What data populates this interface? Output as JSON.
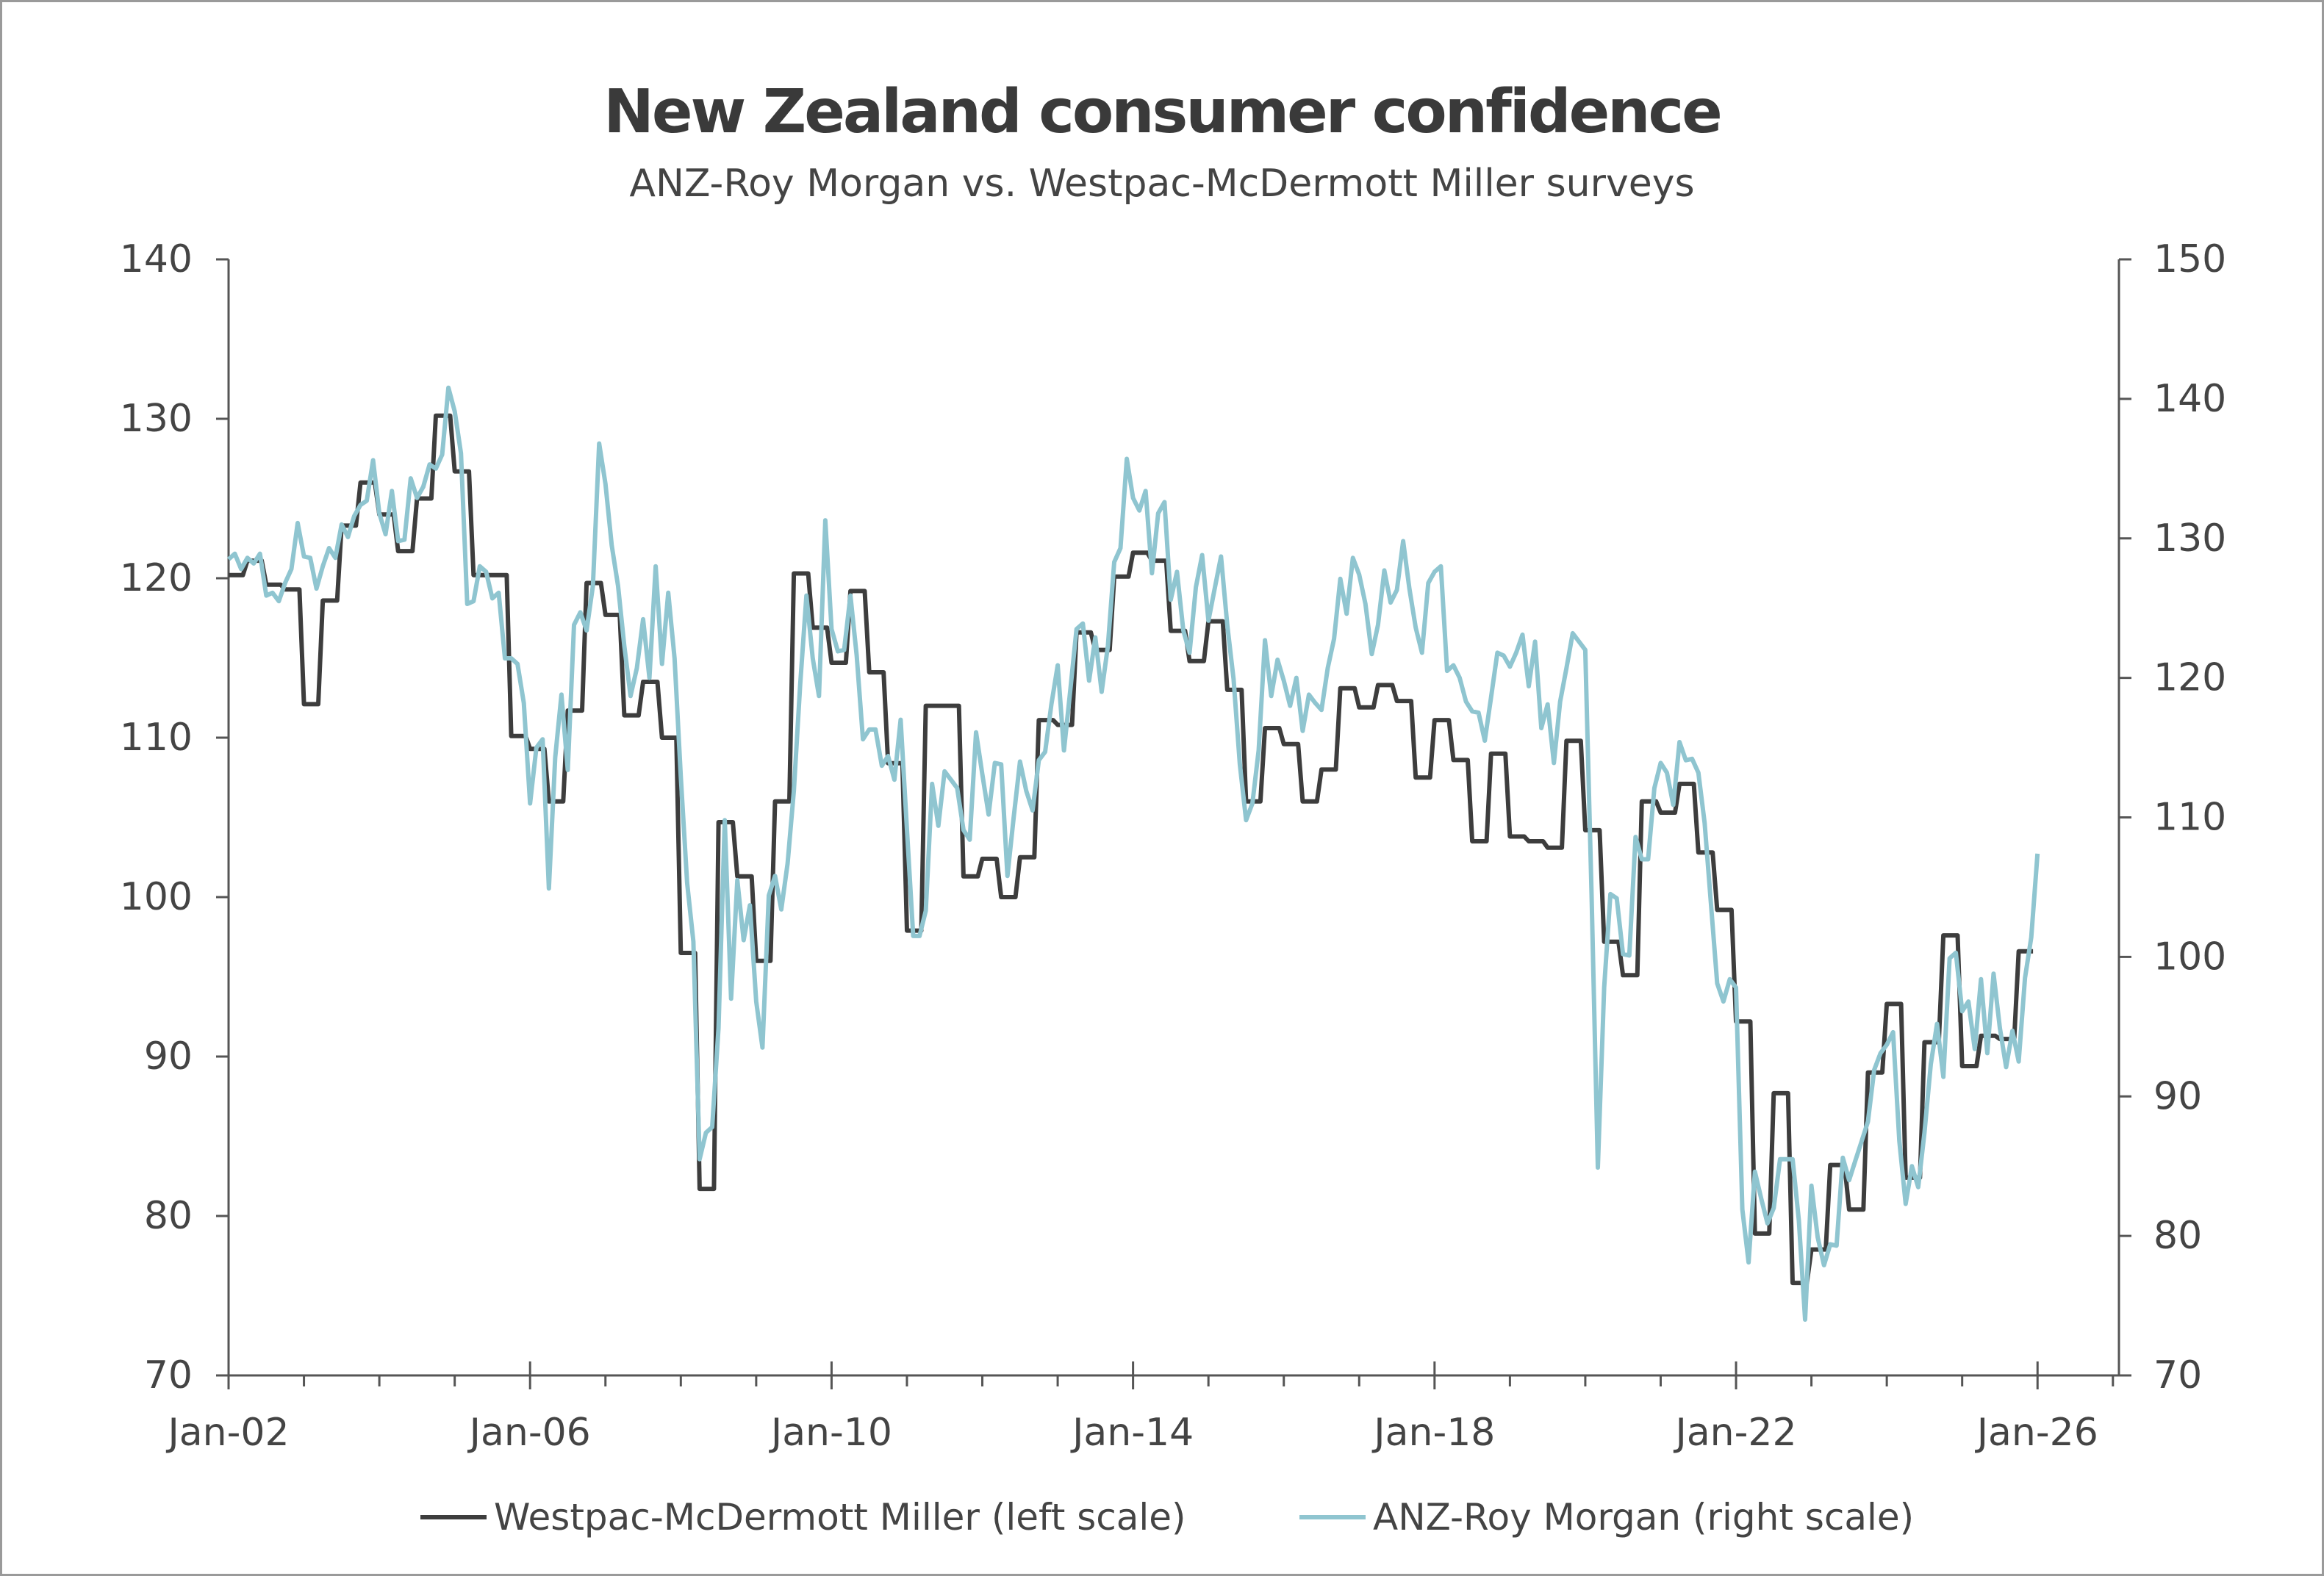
{
  "chart_data": {
    "type": "line",
    "title": "New Zealand consumer confidence",
    "subtitle": "ANZ-Roy Morgan vs. Westpac-McDermott Miller surveys",
    "x_axis": {
      "type": "date",
      "range": [
        "2002-01",
        "2027-01"
      ],
      "tick_labels": [
        "Jan-02",
        "Jan-06",
        "Jan-10",
        "Jan-14",
        "Jan-18",
        "Jan-22",
        "Jan-26"
      ],
      "minor_ticks": "yearly"
    },
    "y_left": {
      "range": [
        70,
        140
      ],
      "ticks": [
        70,
        80,
        90,
        100,
        110,
        120,
        130,
        140
      ]
    },
    "y_right": {
      "range": [
        70,
        150
      ],
      "ticks": [
        70,
        80,
        90,
        100,
        110,
        120,
        130,
        140,
        150
      ]
    },
    "grid": false,
    "legend_position": "bottom",
    "series": [
      {
        "name": "Westpac-McDermott Miller (left scale)",
        "axis": "left",
        "color": "#3d3d3d",
        "frequency": "quarterly",
        "style": "step",
        "quarterly_by_year": {
          "2002": [
            120.2,
            121.1,
            119.6,
            119.3
          ],
          "2003": [
            112.1,
            118.6,
            123.3,
            126.0
          ],
          "2004": [
            124.0,
            121.7,
            125.0,
            130.2
          ],
          "2005": [
            126.7,
            120.2,
            120.2,
            110.1
          ],
          "2006": [
            109.3,
            106.0,
            111.7,
            119.7
          ],
          "2007": [
            117.7,
            111.4,
            113.5,
            110.0
          ],
          "2008": [
            96.5,
            81.7,
            104.7,
            101.3
          ],
          "2009": [
            96.0,
            106.0,
            120.3,
            116.9
          ],
          "2010": [
            114.7,
            119.2,
            114.1,
            108.4
          ],
          "2011": [
            97.9,
            112.0,
            112.0,
            101.3
          ],
          "2012": [
            102.4,
            100.0,
            102.5,
            111.1
          ],
          "2013": [
            110.8,
            116.6,
            115.5,
            120.1
          ],
          "2014": [
            121.6,
            121.1,
            116.7,
            114.8
          ],
          "2015": [
            117.3,
            113.0,
            106.0,
            110.6
          ],
          "2016": [
            109.6,
            106.0,
            108.0,
            113.1
          ],
          "2017": [
            111.9,
            113.3,
            112.3,
            107.5
          ],
          "2018": [
            111.1,
            108.6,
            103.5,
            109.0
          ],
          "2019": [
            103.8,
            103.5,
            103.1,
            109.8
          ],
          "2020": [
            104.2,
            97.2,
            95.1,
            106.0
          ],
          "2021": [
            105.3,
            107.1,
            102.8,
            99.2
          ],
          "2022": [
            92.2,
            78.9,
            87.7,
            75.8
          ],
          "2023": [
            77.9,
            83.2,
            80.4,
            89.0
          ],
          "2024": [
            93.3,
            82.4,
            90.9,
            97.6
          ],
          "2025": [
            89.4,
            91.3,
            91.1,
            96.6
          ]
        }
      },
      {
        "name": "ANZ-Roy Morgan (right scale)",
        "axis": "right",
        "color": "#8fc5d0",
        "frequency": "monthly",
        "style": "line",
        "monthly_by_year": {
          "2002": [
            128.5,
            128.9,
            127.8,
            128.6,
            128.2,
            128.9,
            125.9,
            126.1,
            125.5,
            126.8,
            127.8,
            131.1
          ],
          "2003": [
            128.7,
            128.6,
            126.4,
            128.0,
            129.3,
            128.6,
            131.0,
            130.1,
            131.6,
            132.4,
            132.7,
            135.6
          ],
          "2004": [
            131.8,
            130.3,
            133.4,
            129.8,
            129.9,
            134.3,
            132.9,
            133.7,
            135.3,
            135.0,
            136.0,
            140.8
          ],
          "2005": [
            139.1,
            136.1,
            125.3,
            125.5,
            128.0,
            127.6,
            125.7,
            126.1,
            121.4,
            121.4,
            121.0,
            118.2
          ],
          "2006": [
            111.0,
            115.0,
            115.6,
            104.9,
            114.3,
            118.8,
            113.4,
            123.8,
            124.7,
            123.4,
            126.6,
            136.8
          ],
          "2007": [
            133.9,
            129.5,
            126.6,
            122.3,
            118.7,
            120.7,
            124.2,
            120.0,
            128.0,
            121.0,
            126.1,
            121.4
          ],
          "2008": [
            112.9,
            105.3,
            101.1,
            85.5,
            87.4,
            87.8,
            94.9,
            109.8,
            97.0,
            105.5,
            101.2,
            103.7
          ],
          "2009": [
            96.8,
            93.5,
            104.4,
            105.8,
            103.4,
            106.7,
            111.9,
            119.5,
            125.9,
            121.4,
            118.7,
            131.3
          ],
          "2010": [
            123.5,
            121.9,
            122.0,
            125.9,
            121.6,
            115.6,
            116.3,
            116.3,
            113.7,
            114.4,
            112.7,
            117.0
          ],
          "2011": [
            109.1,
            101.5,
            101.5,
            103.3,
            112.4,
            109.4,
            113.3,
            112.7,
            112.1,
            109.1,
            108.4,
            116.1
          ],
          "2012": [
            113.1,
            110.2,
            113.9,
            113.8,
            105.8,
            110.0,
            114.0,
            111.9,
            110.5,
            114.1,
            114.7,
            118.1
          ],
          "2013": [
            120.9,
            114.8,
            119.1,
            123.5,
            123.9,
            119.8,
            122.9,
            119.0,
            122.3,
            128.3,
            129.3,
            135.7
          ],
          "2014": [
            132.9,
            132.0,
            133.4,
            127.5,
            131.8,
            132.6,
            125.6,
            127.6,
            123.4,
            121.8,
            126.5,
            128.8
          ],
          "2015": [
            124.1,
            126.4,
            128.7,
            123.8,
            119.9,
            113.8,
            109.8,
            111.0,
            114.8,
            122.7,
            118.7,
            121.3
          ],
          "2016": [
            119.8,
            118.0,
            120.0,
            116.2,
            118.8,
            118.2,
            117.7,
            120.7,
            122.8,
            127.1,
            124.6,
            128.6
          ],
          "2017": [
            127.4,
            125.3,
            121.7,
            123.8,
            127.7,
            125.4,
            126.3,
            129.8,
            126.4,
            123.6,
            121.8,
            126.8
          ],
          "2018": [
            127.6,
            128.0,
            120.5,
            120.9,
            120.0,
            118.3,
            117.6,
            117.5,
            115.5,
            118.6,
            121.8,
            121.6
          ],
          "2019": [
            120.8,
            121.8,
            123.1,
            119.4,
            122.6,
            116.4,
            118.1,
            113.9,
            118.3,
            120.7,
            123.2,
            122.6
          ],
          "2020": [
            122.0,
            104.4,
            84.9,
            97.8,
            104.5,
            104.2,
            100.2,
            100.1,
            108.6,
            107.0,
            107.0,
            112.1
          ],
          "2021": [
            113.9,
            113.2,
            110.9,
            115.4,
            114.1,
            114.2,
            113.2,
            109.6,
            103.8,
            98.1,
            96.8,
            98.4
          ],
          "2022": [
            97.8,
            81.9,
            78.1,
            84.6,
            82.7,
            80.9,
            82.0,
            85.5,
            85.5,
            85.5,
            81.1,
            74.0
          ],
          "2023": [
            83.6,
            79.9,
            77.9,
            79.4,
            79.3,
            85.6,
            84.0,
            85.4,
            86.8,
            88.2,
            91.9,
            93.1
          ],
          "2024": [
            93.7,
            94.6,
            86.8,
            82.3,
            85.0,
            83.5,
            87.4,
            92.3,
            95.2,
            91.4,
            99.9,
            100.3
          ],
          "2025": [
            96.1,
            96.8,
            93.4,
            98.4,
            93.1,
            98.8,
            94.9,
            92.1,
            94.7,
            92.5,
            98.5,
            101.4
          ],
          "2026": [
            107.4
          ]
        }
      }
    ]
  }
}
